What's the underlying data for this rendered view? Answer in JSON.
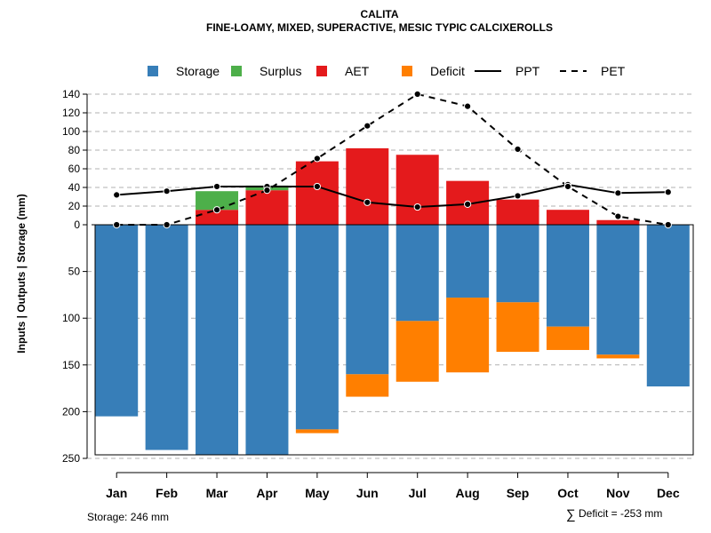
{
  "chart_data": {
    "type": "bar",
    "title": "CALITA",
    "subtitle": "FINE-LOAMY, MIXED, SUPERACTIVE, MESIC TYPIC CALCIXEROLLS",
    "ylabel": "Inputs | Outputs | Storage    (mm)",
    "categories": [
      "Jan",
      "Feb",
      "Mar",
      "Apr",
      "May",
      "Jun",
      "Jul",
      "Aug",
      "Sep",
      "Oct",
      "Nov",
      "Dec"
    ],
    "upper_axis": {
      "ylim": [
        0,
        140
      ],
      "ticks": [
        0,
        20,
        40,
        60,
        80,
        100,
        120,
        140
      ]
    },
    "lower_axis": {
      "ylim": [
        0,
        250
      ],
      "ticks": [
        50,
        100,
        150,
        200,
        250
      ]
    },
    "series": [
      {
        "name": "Storage",
        "color": "#377EB8",
        "panel": "lower",
        "values": [
          205,
          241,
          246,
          246,
          219,
          160,
          103,
          78,
          83,
          109,
          139,
          173
        ]
      },
      {
        "name": "Deficit",
        "color": "#FF7F00",
        "panel": "lower",
        "values": [
          0,
          0,
          0,
          0,
          4,
          24,
          65,
          80,
          53,
          25,
          4,
          0
        ]
      },
      {
        "name": "AET",
        "color": "#E41A1C",
        "panel": "upper",
        "values": [
          0,
          0,
          16,
          37,
          68,
          82,
          75,
          47,
          27,
          16,
          5,
          0
        ]
      },
      {
        "name": "Surplus",
        "color": "#4DAF4A",
        "panel": "upper",
        "values": [
          0,
          0,
          20,
          5,
          0,
          0,
          0,
          0,
          0,
          0,
          0,
          0
        ]
      },
      {
        "name": "PPT",
        "color": "#000000",
        "line": "solid",
        "values": [
          32,
          36,
          41,
          41,
          41,
          24,
          19,
          22,
          31,
          43,
          34,
          35
        ]
      },
      {
        "name": "PET",
        "color": "#000000",
        "line": "dashed",
        "values": [
          0,
          0,
          16,
          37,
          71,
          106,
          140,
          127,
          81,
          41,
          9,
          0
        ]
      }
    ],
    "legend": [
      {
        "label": "Storage",
        "kind": "box",
        "color": "#377EB8"
      },
      {
        "label": "Surplus",
        "kind": "box",
        "color": "#4DAF4A"
      },
      {
        "label": "AET",
        "kind": "box",
        "color": "#E41A1C"
      },
      {
        "label": "Deficit",
        "kind": "box",
        "color": "#FF7F00"
      },
      {
        "label": "PPT",
        "kind": "solid",
        "color": "#000000"
      },
      {
        "label": "PET",
        "kind": "dashed",
        "color": "#000000"
      }
    ],
    "legend_position": "top",
    "grid": true,
    "footer_left": "Storage: 246 mm",
    "footer_right_symbol": "∑",
    "footer_right": "Deficit = -253 mm"
  }
}
